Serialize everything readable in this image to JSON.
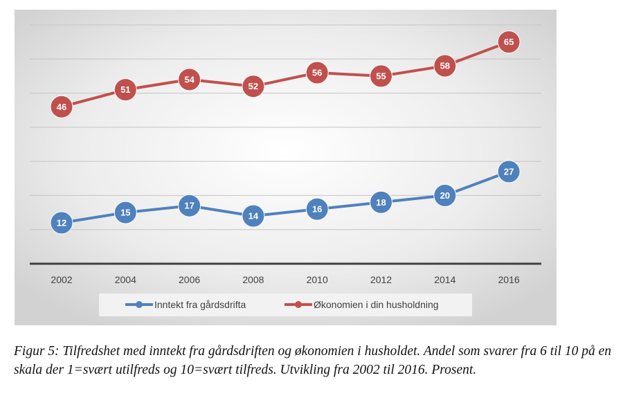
{
  "chart_data": {
    "type": "line",
    "categories": [
      "2002",
      "2004",
      "2006",
      "2008",
      "2010",
      "2012",
      "2014",
      "2016"
    ],
    "series": [
      {
        "name": "Inntekt fra gårdsdrifta",
        "values": [
          12,
          15,
          17,
          14,
          16,
          18,
          20,
          27
        ],
        "color": "#4f81bd"
      },
      {
        "name": "Økonomien i din husholdning",
        "values": [
          46,
          51,
          54,
          52,
          56,
          55,
          58,
          65
        ],
        "color": "#c0504d"
      }
    ],
    "ylim": [
      0,
      70
    ],
    "grid": true,
    "legend_position": "bottom",
    "data_labels": true
  },
  "caption": "Figur 5: Tilfredshet med inntekt fra gårdsdriften og økonomien i husholdet. Andel som svarer fra 6 til 10 på en skala der 1=svært utilfreds og 10=svært tilfreds. Utvikling fra 2002 til 2016. Prosent."
}
